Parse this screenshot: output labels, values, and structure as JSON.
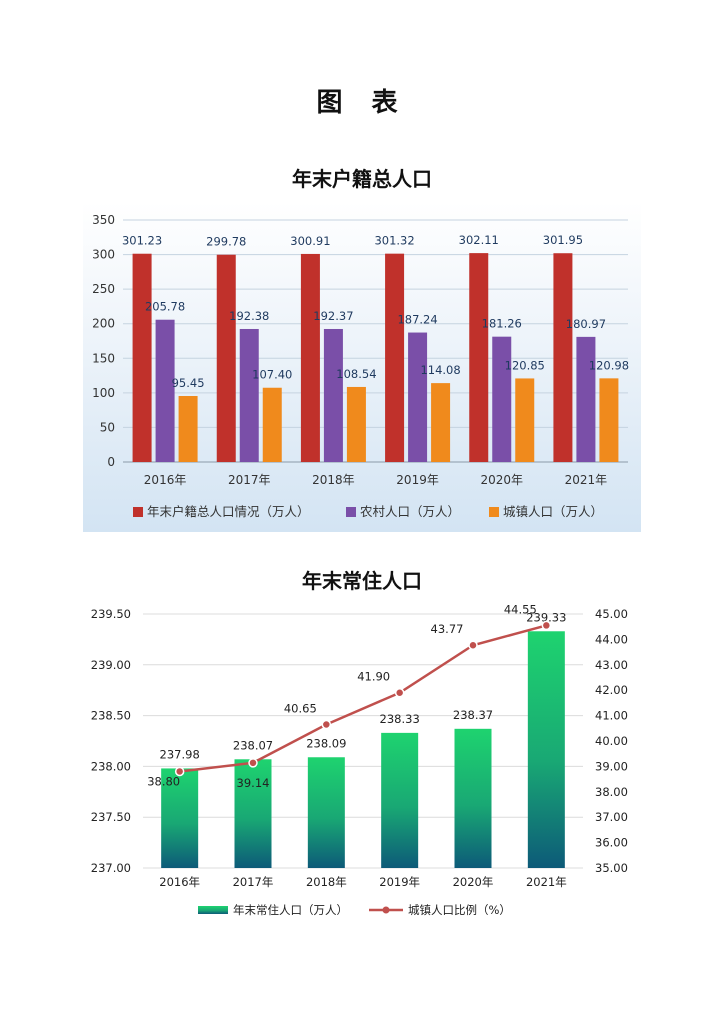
{
  "page": {
    "title": "图 表"
  },
  "chart_data": [
    {
      "type": "bar",
      "title": "年末户籍总人口",
      "categories": [
        "2016年",
        "2017年",
        "2018年",
        "2019年",
        "2020年",
        "2021年"
      ],
      "series": [
        {
          "name": "年末户籍总人口情况（万人）",
          "color": "#c0312b",
          "values": [
            301.23,
            299.78,
            300.91,
            301.32,
            302.11,
            301.95
          ],
          "labels": [
            "301.23",
            "299.78",
            "300.91",
            "301.32",
            "302.11",
            "301.95"
          ]
        },
        {
          "name": "农村人口（万人）",
          "color": "#7a4fa8",
          "values": [
            205.78,
            192.38,
            192.37,
            187.24,
            181.26,
            180.97
          ],
          "labels": [
            "205.78",
            "192.38",
            "192.37",
            "187.24",
            "181.26",
            "180.97"
          ]
        },
        {
          "name": "城镇人口（万人）",
          "color": "#f08a1c",
          "values": [
            95.45,
            107.4,
            108.54,
            114.08,
            120.85,
            120.98
          ],
          "labels": [
            "95.45",
            "107.40",
            "108.54",
            "114.08",
            "120.85",
            "120.98"
          ]
        }
      ],
      "ylim": [
        0,
        350
      ],
      "yticks": [
        0,
        50,
        100,
        150,
        200,
        250,
        300,
        350
      ],
      "ytick_labels": [
        "0",
        "50",
        "100",
        "150",
        "200",
        "250",
        "300",
        "350"
      ],
      "grid": true,
      "legend": "bottom"
    },
    {
      "type": "bar+line",
      "title": "年末常住人口",
      "categories": [
        "2016年",
        "2017年",
        "2018年",
        "2019年",
        "2020年",
        "2021年"
      ],
      "bar_series": {
        "name": "年末常住人口（万人）",
        "color_top": "#1ed36f",
        "color_bottom": "#0d5a78",
        "values": [
          237.98,
          238.07,
          238.09,
          238.33,
          238.37,
          239.33
        ],
        "labels": [
          "237.98",
          "238.07",
          "238.09",
          "238.33",
          "238.37",
          "239.33"
        ]
      },
      "line_series": {
        "name": "城镇人口比例（%）",
        "color": "#c0504d",
        "values": [
          38.8,
          39.14,
          40.65,
          41.9,
          43.77,
          44.55
        ],
        "labels": [
          "38.80",
          "39.14",
          "40.65",
          "41.90",
          "43.77",
          "44.55"
        ]
      },
      "y_left": {
        "range": [
          237.0,
          239.5
        ],
        "ticks": [
          237.0,
          237.5,
          238.0,
          238.5,
          239.0,
          239.5
        ],
        "tick_labels": [
          "237.00",
          "237.50",
          "238.00",
          "238.50",
          "239.00",
          "239.50"
        ]
      },
      "y_right": {
        "range": [
          35.0,
          45.0
        ],
        "ticks": [
          35,
          36,
          37,
          38,
          39,
          40,
          41,
          42,
          43,
          44,
          45
        ],
        "tick_labels": [
          "35.00",
          "36.00",
          "37.00",
          "38.00",
          "39.00",
          "40.00",
          "41.00",
          "42.00",
          "43.00",
          "44.00",
          "45.00"
        ]
      },
      "grid": true,
      "legend": "bottom"
    }
  ]
}
